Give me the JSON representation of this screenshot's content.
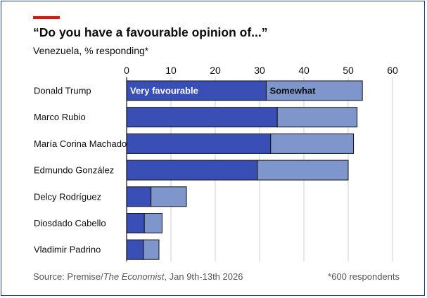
{
  "header": {
    "title": "“Do you have a favourable opinion of...”",
    "subtitle": "Venezuela, % responding*"
  },
  "footer": {
    "source_prefix": "Source: Premise/",
    "source_italic": "The Economist",
    "source_suffix": ", Jan 9th-13th 2026",
    "footnote": "*600 respondents"
  },
  "colors": {
    "very_favourable": "#3a4fb5",
    "somewhat": "#7f96cc",
    "gridline": "#cfcfcf",
    "accent": "#e3120b"
  },
  "chart_data": {
    "type": "bar",
    "orientation": "horizontal",
    "stacked": true,
    "title": "“Do you have a favourable opinion of...”",
    "subtitle": "Venezuela, % responding*",
    "xlim": [
      0,
      60
    ],
    "xticks": [
      0,
      10,
      20,
      30,
      40,
      50,
      60
    ],
    "categories": [
      "Donald Trump",
      "Marco Rubio",
      "María Corina Machado",
      "Edmundo González",
      "Delcy Rodríguez",
      "Diosdado Cabello",
      "Vladimir Padrino"
    ],
    "series": [
      {
        "name": "Very favourable",
        "values": [
          31.5,
          34,
          32.5,
          29.5,
          5.5,
          4,
          3.8
        ]
      },
      {
        "name": "Somewhat",
        "values": [
          21.7,
          18,
          18.7,
          20.5,
          8,
          4,
          3.5
        ]
      }
    ],
    "legend_labels_on_first_bar": true
  }
}
